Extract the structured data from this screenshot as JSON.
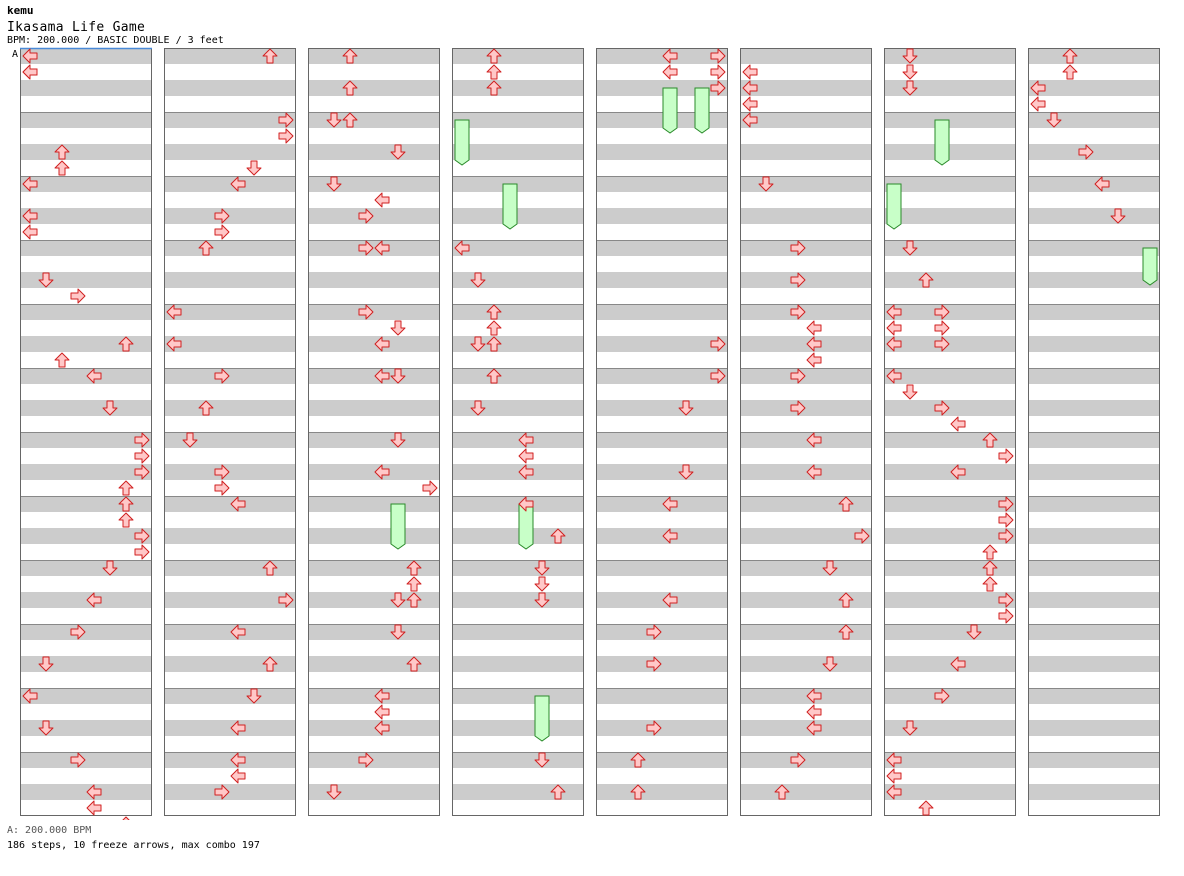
{
  "header": {
    "author": "kemu",
    "title": "Ikasama Life Game",
    "info": "BPM: 200.000 / BASIC DOUBLE / 3 feet"
  },
  "chart_data": {
    "type": "step-chart",
    "bpm_marker": "A",
    "lanes": [
      "L-left",
      "L-down",
      "L-up",
      "L-right",
      "R-left",
      "R-down",
      "R-up",
      "R-right"
    ],
    "columns": 8,
    "measures_per_column": 12,
    "rows_per_measure": 4,
    "arrow_color": "#ffc8c8",
    "freeze_color": "#c8ffc8",
    "stripe_color": "#cccccc",
    "arrows": [
      [
        0,
        0,
        0,
        0
      ],
      [
        0,
        0,
        1,
        0
      ],
      [
        0,
        0,
        1,
        0
      ],
      [
        0,
        1,
        2,
        2
      ],
      [
        0,
        1,
        3,
        2
      ],
      [
        0,
        2,
        0,
        0
      ],
      [
        0,
        2,
        2,
        0
      ],
      [
        0,
        2,
        3,
        0
      ],
      [
        0,
        3,
        2,
        1
      ],
      [
        0,
        3,
        3,
        3
      ],
      [
        0,
        4,
        3,
        2
      ],
      [
        0,
        4,
        2,
        6
      ],
      [
        0,
        5,
        0,
        4
      ],
      [
        0,
        5,
        2,
        5
      ],
      [
        0,
        6,
        0,
        7
      ],
      [
        0,
        6,
        1,
        7
      ],
      [
        0,
        6,
        2,
        7
      ],
      [
        0,
        6,
        3,
        6
      ],
      [
        0,
        7,
        0,
        6
      ],
      [
        0,
        7,
        1,
        6
      ],
      [
        0,
        7,
        2,
        7
      ],
      [
        0,
        7,
        3,
        7
      ],
      [
        0,
        8,
        0,
        5
      ],
      [
        0,
        8,
        2,
        4
      ],
      [
        0,
        9,
        0,
        3
      ],
      [
        0,
        9,
        2,
        1
      ],
      [
        0,
        10,
        0,
        0
      ],
      [
        0,
        10,
        2,
        1
      ],
      [
        0,
        11,
        0,
        3
      ],
      [
        0,
        11,
        2,
        4
      ],
      [
        0,
        11,
        3,
        4
      ],
      [
        0,
        12,
        0,
        6
      ],
      [
        1,
        0,
        0,
        6
      ],
      [
        1,
        1,
        0,
        7
      ],
      [
        1,
        1,
        1,
        7
      ],
      [
        1,
        1,
        3,
        5
      ],
      [
        1,
        2,
        0,
        4
      ],
      [
        1,
        2,
        2,
        3
      ],
      [
        1,
        2,
        3,
        3
      ],
      [
        1,
        3,
        0,
        2
      ],
      [
        1,
        4,
        0,
        0
      ],
      [
        1,
        4,
        2,
        0
      ],
      [
        1,
        5,
        0,
        3
      ],
      [
        1,
        5,
        2,
        2
      ],
      [
        1,
        6,
        0,
        1
      ],
      [
        1,
        6,
        2,
        3
      ],
      [
        1,
        6,
        3,
        3
      ],
      [
        1,
        7,
        0,
        4
      ],
      [
        1,
        8,
        0,
        6
      ],
      [
        1,
        8,
        2,
        7
      ],
      [
        1,
        9,
        0,
        4
      ],
      [
        1,
        9,
        2,
        6
      ],
      [
        1,
        10,
        0,
        5
      ],
      [
        1,
        10,
        2,
        4
      ],
      [
        1,
        11,
        0,
        4
      ],
      [
        1,
        11,
        1,
        4
      ],
      [
        1,
        11,
        2,
        3
      ],
      [
        2,
        0,
        0,
        2
      ],
      [
        2,
        0,
        2,
        2
      ],
      [
        2,
        1,
        0,
        1
      ],
      [
        2,
        1,
        0,
        2
      ],
      [
        2,
        1,
        2,
        5
      ],
      [
        2,
        2,
        0,
        1
      ],
      [
        2,
        2,
        1,
        4
      ],
      [
        2,
        2,
        2,
        3
      ],
      [
        2,
        3,
        0,
        3
      ],
      [
        2,
        3,
        0,
        4
      ],
      [
        2,
        4,
        0,
        3
      ],
      [
        2,
        4,
        1,
        5
      ],
      [
        2,
        4,
        2,
        4
      ],
      [
        2,
        5,
        0,
        4
      ],
      [
        2,
        5,
        0,
        5
      ],
      [
        2,
        6,
        0,
        5
      ],
      [
        2,
        6,
        2,
        4
      ],
      [
        2,
        6,
        3,
        7
      ],
      [
        2,
        8,
        0,
        6
      ],
      [
        2,
        8,
        1,
        6
      ],
      [
        2,
        8,
        2,
        5
      ],
      [
        2,
        8,
        2,
        6
      ],
      [
        2,
        9,
        0,
        5
      ],
      [
        2,
        9,
        2,
        6
      ],
      [
        2,
        10,
        0,
        4
      ],
      [
        2,
        10,
        1,
        4
      ],
      [
        2,
        10,
        2,
        4
      ],
      [
        2,
        11,
        0,
        3
      ],
      [
        2,
        11,
        2,
        1
      ],
      [
        3,
        0,
        0,
        2
      ],
      [
        3,
        0,
        1,
        2
      ],
      [
        3,
        0,
        2,
        2
      ],
      [
        3,
        3,
        0,
        0
      ],
      [
        3,
        3,
        2,
        1
      ],
      [
        3,
        4,
        0,
        2
      ],
      [
        3,
        4,
        1,
        2
      ],
      [
        3,
        4,
        2,
        1
      ],
      [
        3,
        4,
        2,
        2
      ],
      [
        3,
        5,
        0,
        2
      ],
      [
        3,
        5,
        2,
        1
      ],
      [
        3,
        6,
        0,
        4
      ],
      [
        3,
        6,
        1,
        4
      ],
      [
        3,
        6,
        2,
        4
      ],
      [
        3,
        7,
        0,
        4
      ],
      [
        3,
        7,
        2,
        6
      ],
      [
        3,
        8,
        0,
        5
      ],
      [
        3,
        8,
        1,
        5
      ],
      [
        3,
        8,
        2,
        5
      ],
      [
        3,
        11,
        0,
        5
      ],
      [
        3,
        11,
        2,
        6
      ],
      [
        4,
        0,
        0,
        4
      ],
      [
        4,
        0,
        0,
        7
      ],
      [
        4,
        0,
        1,
        4
      ],
      [
        4,
        0,
        1,
        7
      ],
      [
        4,
        0,
        2,
        7
      ],
      [
        4,
        4,
        2,
        7
      ],
      [
        4,
        5,
        0,
        7
      ],
      [
        4,
        5,
        2,
        5
      ],
      [
        4,
        6,
        2,
        5
      ],
      [
        4,
        7,
        0,
        4
      ],
      [
        4,
        7,
        2,
        4
      ],
      [
        4,
        8,
        2,
        4
      ],
      [
        4,
        9,
        0,
        3
      ],
      [
        4,
        9,
        2,
        3
      ],
      [
        4,
        10,
        2,
        3
      ],
      [
        4,
        11,
        0,
        2
      ],
      [
        4,
        11,
        2,
        2
      ],
      [
        5,
        0,
        1,
        0
      ],
      [
        5,
        0,
        2,
        0
      ],
      [
        5,
        0,
        3,
        0
      ],
      [
        5,
        1,
        0,
        0
      ],
      [
        5,
        2,
        0,
        1
      ],
      [
        5,
        3,
        0,
        3
      ],
      [
        5,
        3,
        2,
        3
      ],
      [
        5,
        4,
        0,
        3
      ],
      [
        5,
        4,
        1,
        4
      ],
      [
        5,
        4,
        2,
        4
      ],
      [
        5,
        4,
        3,
        4
      ],
      [
        5,
        5,
        0,
        3
      ],
      [
        5,
        5,
        2,
        3
      ],
      [
        5,
        6,
        0,
        4
      ],
      [
        5,
        6,
        2,
        4
      ],
      [
        5,
        7,
        0,
        6
      ],
      [
        5,
        7,
        2,
        7
      ],
      [
        5,
        8,
        0,
        5
      ],
      [
        5,
        8,
        2,
        6
      ],
      [
        5,
        9,
        0,
        6
      ],
      [
        5,
        9,
        2,
        5
      ],
      [
        5,
        10,
        0,
        4
      ],
      [
        5,
        10,
        1,
        4
      ],
      [
        5,
        10,
        2,
        4
      ],
      [
        5,
        11,
        0,
        3
      ],
      [
        5,
        11,
        2,
        2
      ],
      [
        6,
        0,
        0,
        1
      ],
      [
        6,
        0,
        1,
        1
      ],
      [
        6,
        0,
        2,
        1
      ],
      [
        6,
        3,
        0,
        1
      ],
      [
        6,
        3,
        2,
        2
      ],
      [
        6,
        4,
        0,
        0
      ],
      [
        6,
        4,
        0,
        3
      ],
      [
        6,
        4,
        1,
        0
      ],
      [
        6,
        4,
        1,
        3
      ],
      [
        6,
        4,
        2,
        0
      ],
      [
        6,
        4,
        2,
        3
      ],
      [
        6,
        5,
        0,
        0
      ],
      [
        6,
        5,
        1,
        1
      ],
      [
        6,
        5,
        2,
        3
      ],
      [
        6,
        5,
        3,
        4
      ],
      [
        6,
        6,
        0,
        6
      ],
      [
        6,
        6,
        1,
        7
      ],
      [
        6,
        6,
        2,
        4
      ],
      [
        6,
        7,
        0,
        7
      ],
      [
        6,
        7,
        1,
        7
      ],
      [
        6,
        7,
        2,
        7
      ],
      [
        6,
        7,
        3,
        6
      ],
      [
        6,
        8,
        0,
        6
      ],
      [
        6,
        8,
        1,
        6
      ],
      [
        6,
        8,
        2,
        7
      ],
      [
        6,
        8,
        3,
        7
      ],
      [
        6,
        9,
        0,
        5
      ],
      [
        6,
        9,
        2,
        4
      ],
      [
        6,
        10,
        0,
        3
      ],
      [
        6,
        10,
        2,
        1
      ],
      [
        6,
        11,
        0,
        0
      ],
      [
        6,
        11,
        1,
        0
      ],
      [
        6,
        11,
        2,
        0
      ],
      [
        6,
        11,
        3,
        2
      ],
      [
        7,
        0,
        0,
        2
      ],
      [
        7,
        0,
        1,
        2
      ],
      [
        7,
        0,
        2,
        0
      ],
      [
        7,
        0,
        3,
        0
      ],
      [
        7,
        1,
        0,
        1
      ],
      [
        7,
        1,
        2,
        3
      ],
      [
        7,
        2,
        0,
        4
      ],
      [
        7,
        2,
        2,
        5
      ]
    ],
    "freezes": [
      [
        3,
        1,
        0,
        0,
        2.5
      ],
      [
        3,
        2,
        0,
        3,
        2.5
      ],
      [
        3,
        7,
        0,
        4,
        2.5
      ],
      [
        3,
        10,
        0,
        5,
        2.5
      ],
      [
        2,
        7,
        0,
        5,
        2.5
      ],
      [
        4,
        0,
        2,
        4,
        2.5
      ],
      [
        4,
        0,
        2,
        6,
        2.5
      ],
      [
        6,
        1,
        0,
        3,
        2.5
      ],
      [
        6,
        2,
        0,
        0,
        2.5
      ],
      [
        7,
        3,
        0,
        7,
        2.0
      ]
    ]
  },
  "footer": {
    "bpm": "A: 200.000 BPM",
    "stats": "186 steps, 10 freeze arrows, max combo 197"
  }
}
